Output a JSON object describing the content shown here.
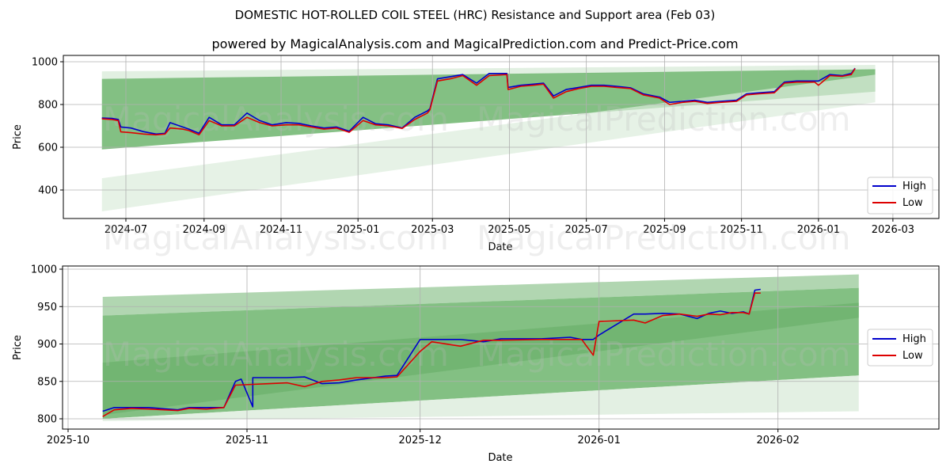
{
  "header": {
    "title": "DOMESTIC HOT-ROLLED COIL STEEL (HRC) Resistance and Support area (Feb 03)",
    "subtitle": "powered by MagicalAnalysis.com and MagicalPrediction.com and Predict-Price.com"
  },
  "watermarks": [
    "MagicalAnalysis.com",
    "MagicalPrediction.com"
  ],
  "colors": {
    "high": "#0000cc",
    "low": "#dd0000",
    "band_dark": "#4aa04a",
    "band_light": "#c8e2c8",
    "grid": "#b0b0b0"
  },
  "chart_data": [
    {
      "type": "line",
      "title": "Full history",
      "xlabel": "Date",
      "ylabel": "Price",
      "ylim": [
        255,
        1030
      ],
      "yticks": [
        400,
        600,
        800,
        1000
      ],
      "xticks": [
        "2024-07",
        "2024-09",
        "2024-11",
        "2025-01",
        "2025-03",
        "2025-05",
        "2025-07",
        "2025-09",
        "2025-11",
        "2026-01",
        "2026-03"
      ],
      "grid": true,
      "legend": {
        "position": "lower right",
        "entries": [
          "High",
          "Low"
        ]
      },
      "series": [
        {
          "name": "High",
          "color": "#0000cc",
          "x": [
            "2024-06-12",
            "2024-06-20",
            "2024-06-25",
            "2024-06-27",
            "2024-07-05",
            "2024-07-15",
            "2024-07-25",
            "2024-08-01",
            "2024-08-05",
            "2024-08-15",
            "2024-08-20",
            "2024-08-28",
            "2024-09-05",
            "2024-09-15",
            "2024-09-25",
            "2024-10-05",
            "2024-10-15",
            "2024-10-25",
            "2024-11-05",
            "2024-11-15",
            "2024-11-25",
            "2024-12-05",
            "2024-12-15",
            "2024-12-25",
            "2025-01-05",
            "2025-01-15",
            "2025-01-25",
            "2025-02-05",
            "2025-02-15",
            "2025-02-25",
            "2025-02-27",
            "2025-03-05",
            "2025-03-15",
            "2025-03-25",
            "2025-04-05",
            "2025-04-15",
            "2025-04-29",
            "2025-04-30",
            "2025-05-10",
            "2025-05-20",
            "2025-05-28",
            "2025-06-05",
            "2025-06-15",
            "2025-06-25",
            "2025-07-05",
            "2025-07-15",
            "2025-07-25",
            "2025-08-05",
            "2025-08-15",
            "2025-08-28",
            "2025-09-05",
            "2025-09-15",
            "2025-09-25",
            "2025-10-05",
            "2025-10-15",
            "2025-10-28",
            "2025-11-05",
            "2025-11-15",
            "2025-11-27",
            "2025-12-05",
            "2025-12-15",
            "2025-12-29",
            "2026-01-01",
            "2026-01-10",
            "2026-01-20",
            "2026-01-27",
            "2026-01-30"
          ],
          "values": [
            737,
            735,
            730,
            695,
            690,
            673,
            662,
            665,
            715,
            695,
            685,
            665,
            740,
            705,
            705,
            760,
            725,
            705,
            715,
            712,
            700,
            690,
            695,
            675,
            740,
            710,
            705,
            690,
            740,
            770,
            780,
            920,
            930,
            940,
            900,
            945,
            945,
            880,
            890,
            895,
            900,
            840,
            870,
            880,
            890,
            890,
            885,
            878,
            850,
            835,
            810,
            815,
            820,
            810,
            815,
            820,
            850,
            855,
            860,
            905,
            910,
            910,
            910,
            940,
            935,
            945,
            970
          ]
        },
        {
          "name": "Low",
          "color": "#dd0000",
          "x": [
            "2024-06-12",
            "2024-06-20",
            "2024-06-25",
            "2024-06-27",
            "2024-07-05",
            "2024-07-15",
            "2024-07-25",
            "2024-08-01",
            "2024-08-05",
            "2024-08-15",
            "2024-08-20",
            "2024-08-28",
            "2024-09-05",
            "2024-09-15",
            "2024-09-25",
            "2024-10-05",
            "2024-10-15",
            "2024-10-25",
            "2024-11-05",
            "2024-11-15",
            "2024-11-25",
            "2024-12-05",
            "2024-12-15",
            "2024-12-25",
            "2025-01-05",
            "2025-01-15",
            "2025-01-25",
            "2025-02-05",
            "2025-02-15",
            "2025-02-25",
            "2025-02-27",
            "2025-03-05",
            "2025-03-15",
            "2025-03-25",
            "2025-04-05",
            "2025-04-15",
            "2025-04-29",
            "2025-04-30",
            "2025-05-10",
            "2025-05-20",
            "2025-05-28",
            "2025-06-05",
            "2025-06-15",
            "2025-06-25",
            "2025-07-05",
            "2025-07-15",
            "2025-07-25",
            "2025-08-05",
            "2025-08-15",
            "2025-08-28",
            "2025-09-05",
            "2025-09-15",
            "2025-09-25",
            "2025-10-05",
            "2025-10-15",
            "2025-10-28",
            "2025-11-05",
            "2025-11-15",
            "2025-11-27",
            "2025-12-05",
            "2025-12-15",
            "2025-12-29",
            "2026-01-01",
            "2026-01-10",
            "2026-01-20",
            "2026-01-27",
            "2026-01-30"
          ],
          "values": [
            733,
            730,
            725,
            672,
            668,
            662,
            658,
            662,
            690,
            685,
            678,
            658,
            725,
            700,
            700,
            740,
            715,
            700,
            705,
            705,
            695,
            685,
            690,
            670,
            725,
            705,
            700,
            688,
            730,
            760,
            775,
            910,
            920,
            935,
            890,
            935,
            940,
            870,
            885,
            890,
            895,
            830,
            860,
            875,
            885,
            885,
            880,
            875,
            845,
            830,
            800,
            810,
            815,
            805,
            810,
            815,
            845,
            850,
            855,
            900,
            905,
            905,
            890,
            935,
            932,
            940,
            968
          ]
        }
      ],
      "bands": [
        {
          "name": "outer_resistance_light",
          "start": {
            "date": "2024-06-12",
            "top": 955,
            "bottom": 920
          },
          "end": {
            "date": "2026-02-15",
            "top": 985,
            "bottom": 960
          }
        },
        {
          "name": "main_channel",
          "start": {
            "date": "2024-06-12",
            "top": 920,
            "bottom": 590
          },
          "end": {
            "date": "2026-02-15",
            "top": 965,
            "bottom": 860
          }
        },
        {
          "name": "lower_support_light",
          "start": {
            "date": "2024-06-12",
            "top": 455,
            "bottom": 300
          },
          "end": {
            "date": "2026-02-15",
            "top": 940,
            "bottom": 810
          }
        }
      ]
    },
    {
      "type": "line",
      "title": "Recent zoom",
      "xlabel": "Date",
      "ylabel": "Price",
      "ylim": [
        786,
        1004
      ],
      "yticks": [
        800,
        850,
        900,
        950,
        1000
      ],
      "xticks": [
        "2025-10",
        "2025-11",
        "2025-12",
        "2026-01",
        "2026-02"
      ],
      "grid": true,
      "legend": {
        "position": "center right",
        "entries": [
          "High",
          "Low"
        ]
      },
      "series": [
        {
          "name": "High",
          "color": "#0000cc",
          "x": [
            "2025-10-07",
            "2025-10-09",
            "2025-10-12",
            "2025-10-15",
            "2025-10-20",
            "2025-10-22",
            "2025-10-25",
            "2025-10-28",
            "2025-11-02",
            "2025-11-05",
            "2025-10-30",
            "2025-10-31",
            "2025-11-02",
            "2025-11-08",
            "2025-11-11",
            "2025-11-14",
            "2025-11-17",
            "2025-11-20",
            "2025-11-25",
            "2025-11-27",
            "2025-12-01",
            "2025-12-03",
            "2025-12-08",
            "2025-12-12",
            "2025-12-15",
            "2025-12-22",
            "2025-12-27",
            "2025-12-29",
            "2025-12-31",
            "2026-01-01",
            "2026-01-07",
            "2026-01-09",
            "2026-01-12",
            "2026-01-15",
            "2026-01-18",
            "2026-01-20",
            "2026-01-22",
            "2026-01-24",
            "2026-01-26",
            "2026-01-27",
            "2026-01-28",
            "2026-01-29"
          ],
          "values": [
            810,
            815,
            815,
            815,
            812,
            815,
            815,
            815,
            816,
            855,
            850,
            853,
            855,
            855,
            856,
            847,
            848,
            852,
            857,
            858,
            906,
            906,
            906,
            903,
            907,
            907,
            909,
            906,
            906,
            912,
            940,
            940,
            941,
            940,
            934,
            941,
            944,
            941,
            943,
            940,
            972,
            973
          ]
        },
        {
          "name": "Low",
          "color": "#dd0000",
          "x": [
            "2025-10-07",
            "2025-10-09",
            "2025-10-12",
            "2025-10-15",
            "2025-10-20",
            "2025-10-22",
            "2025-10-25",
            "2025-10-28",
            "2025-10-30",
            "2025-11-02",
            "2025-11-05",
            "2025-11-08",
            "2025-11-11",
            "2025-11-14",
            "2025-11-17",
            "2025-11-20",
            "2025-11-25",
            "2025-11-27",
            "2025-12-01",
            "2025-12-03",
            "2025-12-08",
            "2025-12-12",
            "2025-12-15",
            "2025-12-22",
            "2025-12-27",
            "2025-12-29",
            "2025-12-31",
            "2026-01-01",
            "2026-01-07",
            "2026-01-09",
            "2026-01-12",
            "2026-01-15",
            "2026-01-18",
            "2026-01-20",
            "2026-01-22",
            "2026-01-24",
            "2026-01-26",
            "2026-01-27",
            "2026-01-28",
            "2026-01-29"
          ],
          "values": [
            803,
            812,
            814,
            813,
            811,
            814,
            813,
            815,
            845,
            846,
            847,
            848,
            843,
            850,
            852,
            855,
            855,
            856,
            890,
            903,
            897,
            905,
            905,
            906,
            906,
            906,
            885,
            930,
            932,
            928,
            938,
            940,
            937,
            940,
            939,
            942,
            942,
            940,
            968,
            968
          ]
        }
      ],
      "bands": [
        {
          "name": "outer_light_top",
          "start": {
            "date": "2025-10-07",
            "top": 963,
            "bottom": 938
          },
          "end": {
            "date": "2026-02-15",
            "top": 993,
            "bottom": 975
          }
        },
        {
          "name": "main_channel",
          "start": {
            "date": "2025-10-07",
            "top": 938,
            "bottom": 800
          },
          "end": {
            "date": "2026-02-15",
            "top": 975,
            "bottom": 858
          }
        },
        {
          "name": "inner_dark",
          "start": {
            "date": "2025-10-07",
            "top": 875,
            "bottom": 805
          },
          "end": {
            "date": "2026-02-15",
            "top": 955,
            "bottom": 935
          }
        },
        {
          "name": "lower_light",
          "start": {
            "date": "2025-10-07",
            "top": 800,
            "bottom": 797
          },
          "end": {
            "date": "2026-02-15",
            "top": 858,
            "bottom": 810
          }
        }
      ]
    }
  ]
}
